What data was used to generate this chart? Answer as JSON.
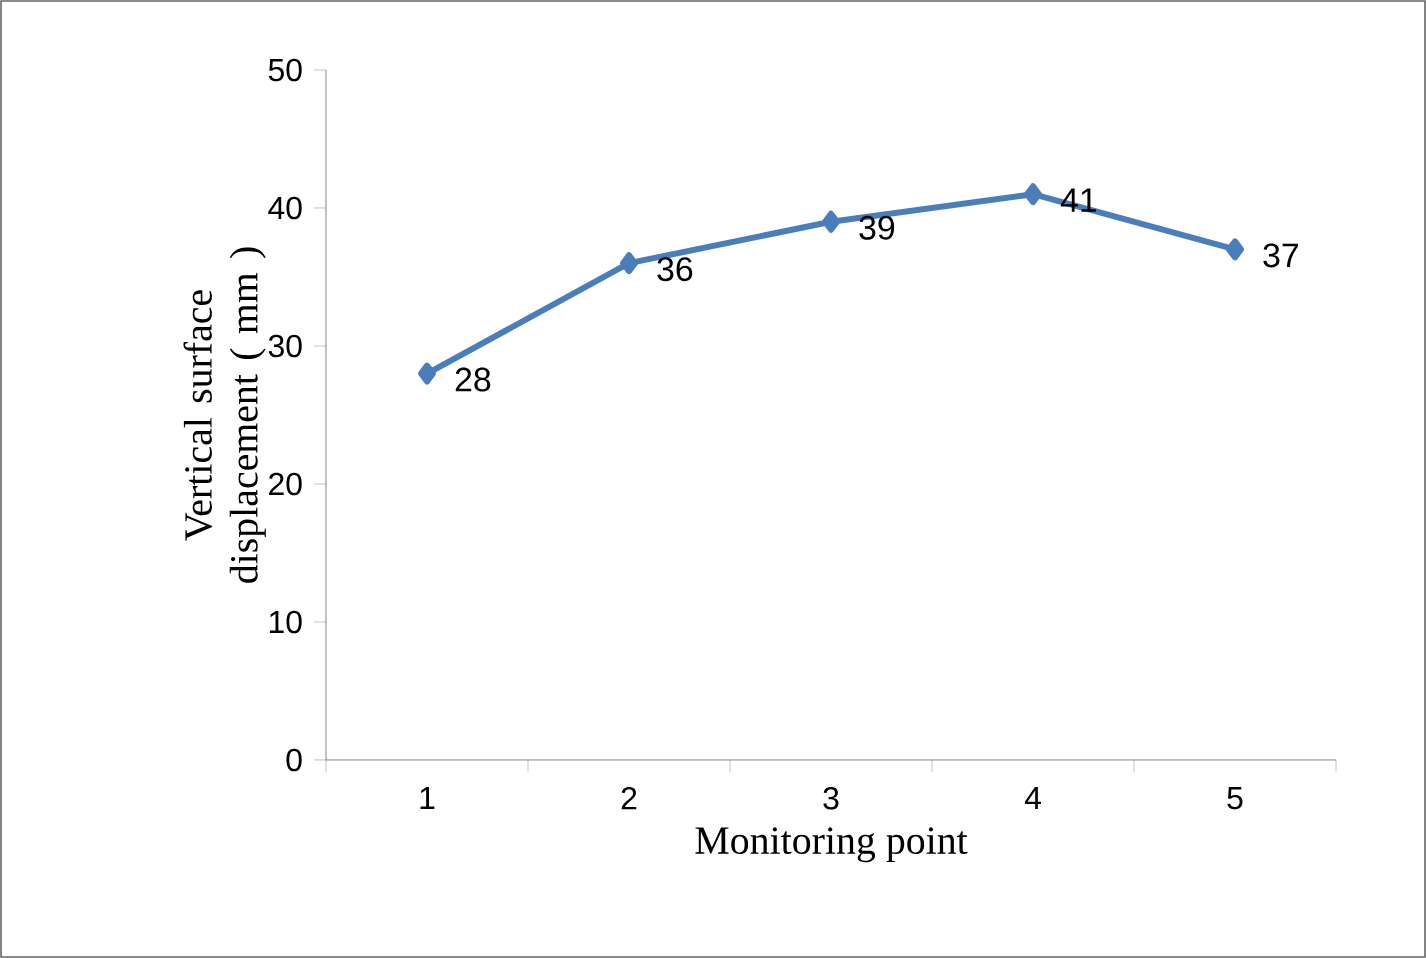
{
  "chart_data": {
    "type": "line",
    "xlabel": "Monitoring point",
    "ylabel": "Vertical surface displacement ( mm )",
    "categories": [
      "1",
      "2",
      "3",
      "4",
      "5"
    ],
    "series": [
      {
        "color": "#4a7ebb",
        "values": [
          28,
          36,
          39,
          41,
          37
        ]
      }
    ],
    "ylim": [
      0,
      50
    ],
    "yticks": [
      0,
      10,
      20,
      30,
      40,
      50
    ],
    "data_labels": true,
    "marker": "diamond",
    "line_style": "solid",
    "grid": false
  }
}
